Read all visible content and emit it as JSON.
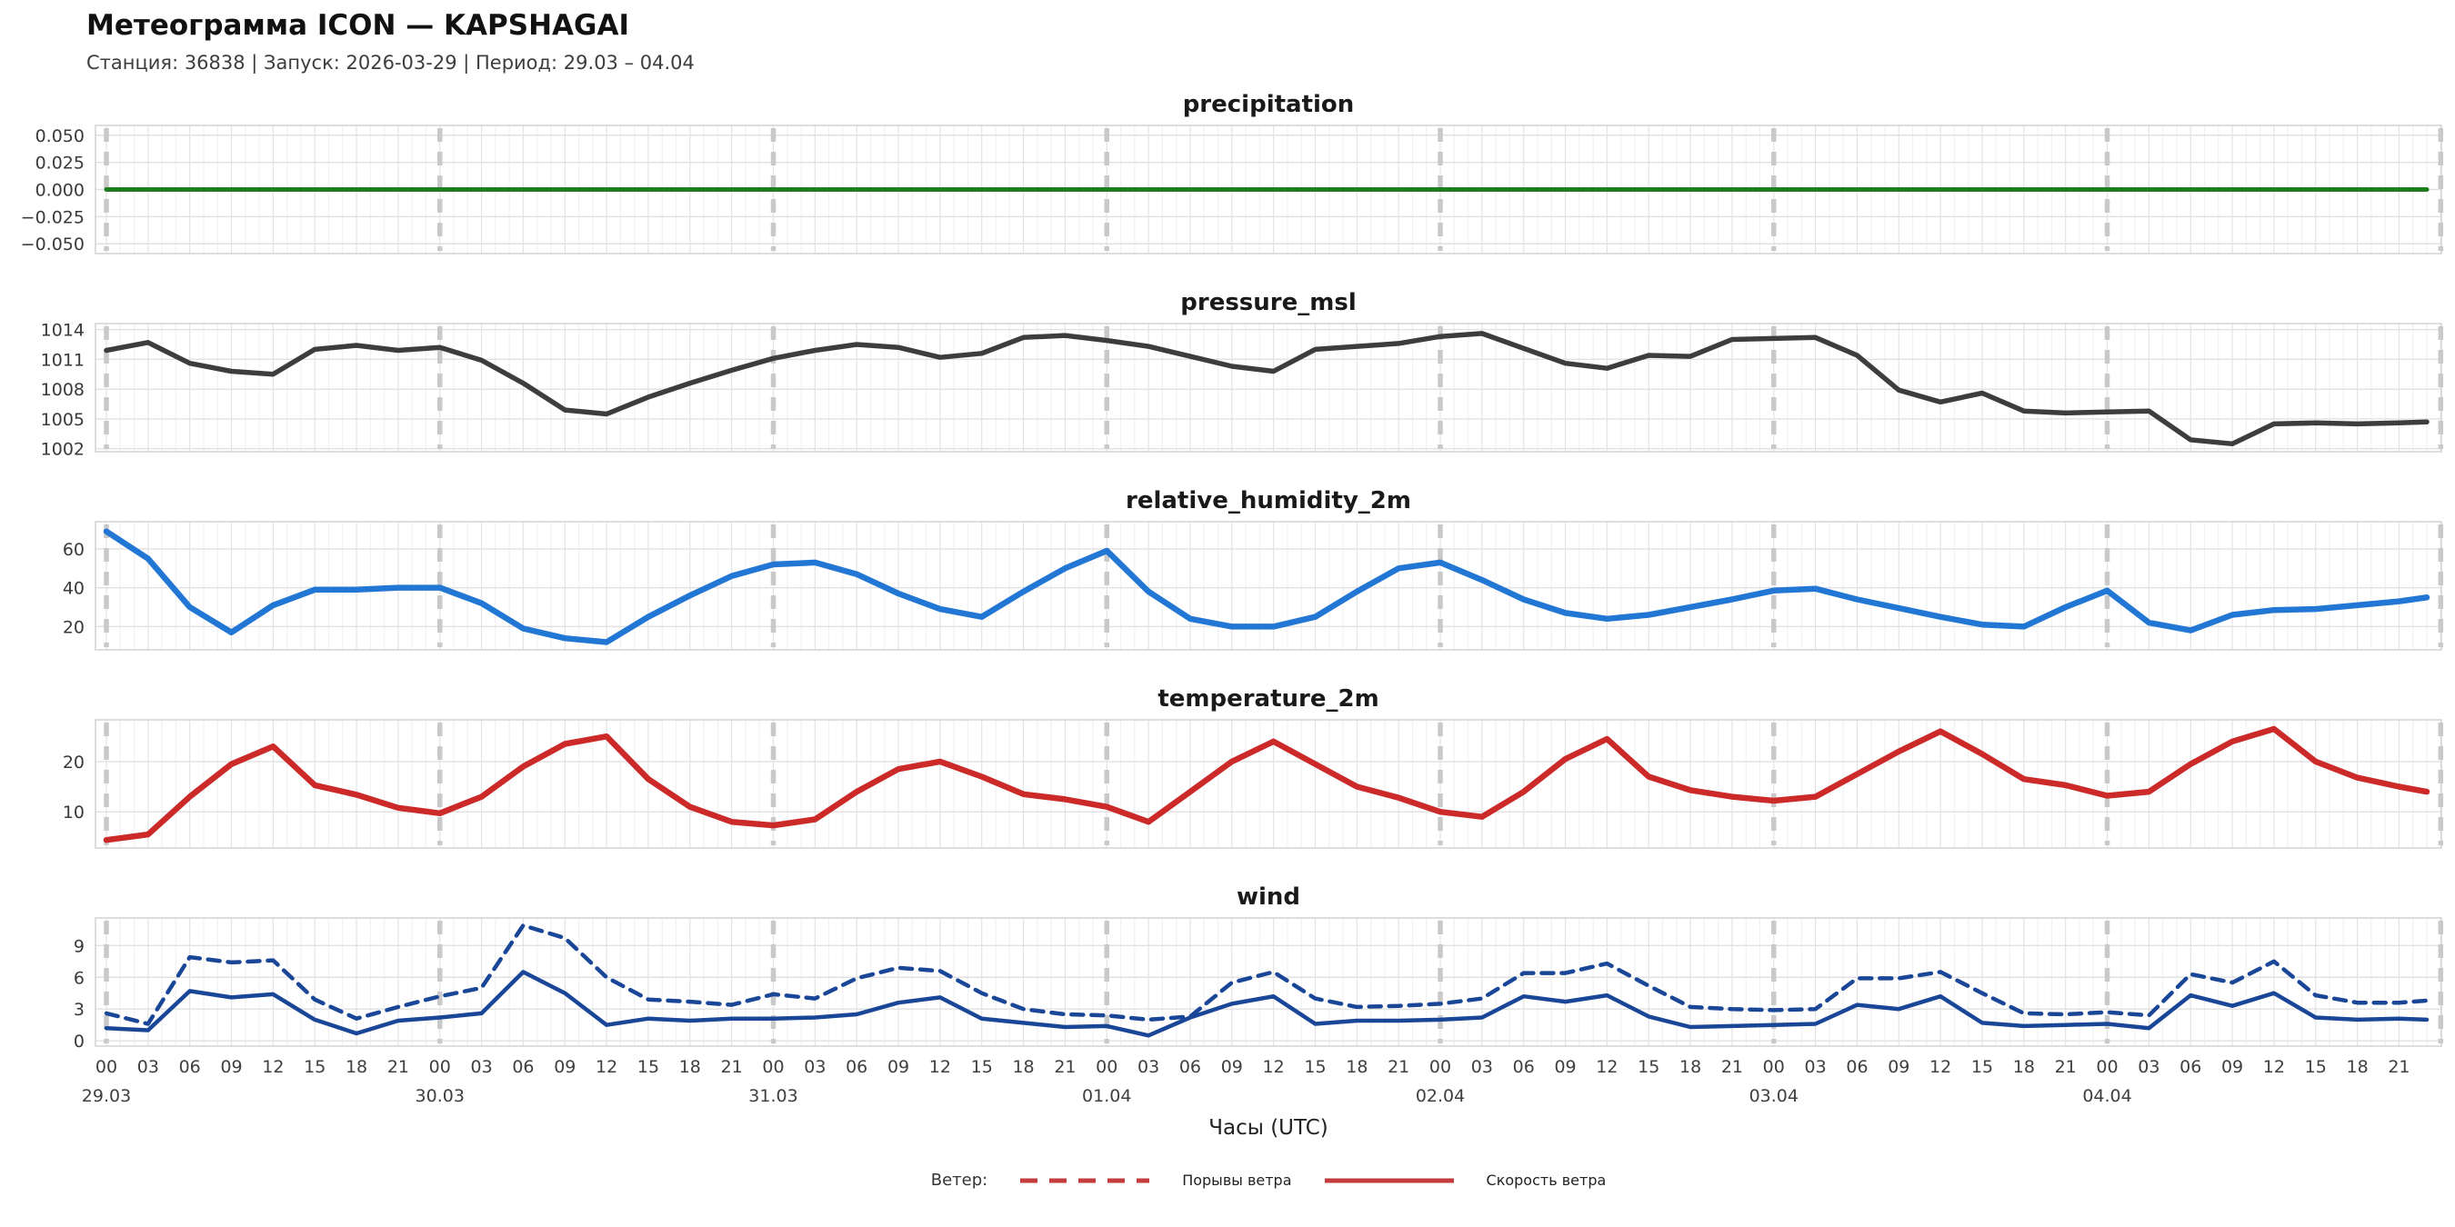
{
  "header": {
    "title": "Метеограмма ICON — KAPSHAGAI",
    "subtitle": "Станция: 36838  | Запуск: 2026-03-29  | Период: 29.03 – 04.04"
  },
  "x_axis": {
    "hour_labels": [
      "00",
      "03",
      "06",
      "09",
      "12",
      "15",
      "18",
      "21"
    ],
    "day_labels": [
      "29.03",
      "30.03",
      "31.03",
      "01.04",
      "02.04",
      "03.04",
      "04.04"
    ],
    "label": "Часы (UTC)",
    "tick_color": "#3f3f3f"
  },
  "legend": {
    "label": "Ветер:",
    "gusts_label": "Порывы ветра",
    "speed_label": "Скорость ветра",
    "color": "#c33d3d"
  },
  "style": {
    "grid_minor": "#f1f1f1",
    "grid_major": "#e3e3e3",
    "grid_horizontal": "#e1e1e1",
    "border": "#d5d5d5",
    "day_line": "#c9c9c9",
    "tick_label_color": "#3a3a3a"
  },
  "chart_data": {
    "type": "line",
    "x_hours": [
      0,
      3,
      6,
      9,
      12,
      15,
      18,
      21,
      24,
      27,
      30,
      33,
      36,
      39,
      42,
      45,
      48,
      51,
      54,
      57,
      60,
      63,
      66,
      69,
      72,
      75,
      78,
      81,
      84,
      87,
      90,
      93,
      96,
      99,
      102,
      105,
      108,
      111,
      114,
      117,
      120,
      123,
      126,
      129,
      132,
      135,
      138,
      141,
      144,
      147,
      150,
      153,
      156,
      159,
      162,
      165,
      167
    ],
    "panels": [
      {
        "title": "precipitation",
        "ylim": [
          -0.059,
          0.059
        ],
        "yticks": [
          {
            "v": 0.05,
            "label": "0.050"
          },
          {
            "v": 0.025,
            "label": "0.025"
          },
          {
            "v": 0.0,
            "label": "0.000"
          },
          {
            "v": -0.025,
            "label": "−0.025"
          },
          {
            "v": -0.05,
            "label": "−0.050"
          }
        ],
        "series": [
          {
            "name": "precipitation",
            "color": "#1f7d1f",
            "width": 5,
            "style": "solid",
            "values": [
              0,
              0,
              0,
              0,
              0,
              0,
              0,
              0,
              0,
              0,
              0,
              0,
              0,
              0,
              0,
              0,
              0,
              0,
              0,
              0,
              0,
              0,
              0,
              0,
              0,
              0,
              0,
              0,
              0,
              0,
              0,
              0,
              0,
              0,
              0,
              0,
              0,
              0,
              0,
              0,
              0,
              0,
              0,
              0,
              0,
              0,
              0,
              0,
              0,
              0,
              0,
              0,
              0,
              0,
              0,
              0,
              0
            ]
          }
        ]
      },
      {
        "title": "pressure_msl",
        "ylim": [
          1001.7,
          1014.6
        ],
        "yticks": [
          {
            "v": 1014,
            "label": "1014"
          },
          {
            "v": 1011,
            "label": "1011"
          },
          {
            "v": 1008,
            "label": "1008"
          },
          {
            "v": 1005,
            "label": "1005"
          },
          {
            "v": 1002,
            "label": "1002"
          }
        ],
        "series": [
          {
            "name": "pressure_msl",
            "color": "#3d3d3d",
            "width": 5.5,
            "style": "solid",
            "values": [
              1011.9,
              1012.7,
              1010.6,
              1009.8,
              1009.5,
              1012.0,
              1012.4,
              1011.9,
              1012.2,
              1010.9,
              1008.6,
              1005.9,
              1005.5,
              1007.2,
              1008.6,
              1009.9,
              1011.1,
              1011.9,
              1012.5,
              1012.2,
              1011.2,
              1011.6,
              1013.2,
              1013.4,
              1012.9,
              1012.3,
              1011.3,
              1010.3,
              1009.8,
              1012.0,
              1012.3,
              1012.6,
              1013.3,
              1013.6,
              1012.1,
              1010.6,
              1010.1,
              1011.4,
              1011.3,
              1013.0,
              1013.1,
              1013.2,
              1011.4,
              1007.9,
              1006.7,
              1007.6,
              1005.8,
              1005.6,
              1005.7,
              1005.8,
              1002.9,
              1002.5,
              1004.5,
              1004.6,
              1004.5,
              1004.6,
              1004.7
            ]
          }
        ]
      },
      {
        "title": "relative_humidity_2m",
        "ylim": [
          8,
          74
        ],
        "yticks": [
          {
            "v": 60,
            "label": "60"
          },
          {
            "v": 40,
            "label": "40"
          },
          {
            "v": 20,
            "label": "20"
          }
        ],
        "series": [
          {
            "name": "relative_humidity_2m",
            "color": "#2277d4",
            "width": 6.5,
            "style": "solid",
            "values": [
              69,
              55,
              30,
              17,
              31,
              39,
              39,
              40,
              40,
              32,
              19,
              14,
              12,
              25,
              36,
              46,
              52,
              53,
              47,
              37,
              29,
              25,
              38,
              50,
              59,
              38,
              24,
              20,
              20,
              25,
              38,
              50,
              53,
              44,
              34,
              27,
              24,
              26,
              30,
              34,
              38.5,
              39.5,
              34,
              29.5,
              25,
              21,
              20,
              30,
              38.5,
              22,
              18,
              26,
              28.5,
              29,
              31,
              33,
              35
            ]
          }
        ]
      },
      {
        "title": "temperature_2m",
        "ylim": [
          2.8,
          28.3
        ],
        "yticks": [
          {
            "v": 20,
            "label": "20"
          },
          {
            "v": 10,
            "label": "10"
          }
        ],
        "series": [
          {
            "name": "temperature_2m",
            "color": "#cc2929",
            "width": 6.5,
            "style": "solid",
            "values": [
              4.4,
              5.5,
              13,
              19.5,
              23,
              15.3,
              13.4,
              10.8,
              9.7,
              13,
              19,
              23.5,
              25,
              16.5,
              11,
              8,
              7.3,
              8.5,
              14,
              18.5,
              20,
              17,
              13.5,
              12.5,
              11,
              8,
              14,
              20,
              24,
              19.5,
              15,
              12.8,
              10,
              9,
              14,
              20.5,
              24.5,
              17,
              14.3,
              13,
              12.2,
              13,
              17.5,
              22,
              26,
              21.5,
              16.5,
              15.3,
              13.2,
              14,
              19.5,
              24,
              26.5,
              20,
              16.8,
              15,
              14
            ]
          }
        ]
      },
      {
        "title": "wind",
        "ylim": [
          -0.5,
          11.6
        ],
        "yticks": [
          {
            "v": 9,
            "label": "9"
          },
          {
            "v": 6,
            "label": "6"
          },
          {
            "v": 3,
            "label": "3"
          },
          {
            "v": 0,
            "label": "0"
          }
        ],
        "series": [
          {
            "name": "Порывы ветра",
            "color": "#1a4697",
            "width": 4.5,
            "style": "dashed",
            "values": [
              2.6,
              1.6,
              7.9,
              7.4,
              7.6,
              3.9,
              2.1,
              3.2,
              4.2,
              5.0,
              10.9,
              9.7,
              6.0,
              3.9,
              3.7,
              3.4,
              4.4,
              4.0,
              5.9,
              6.9,
              6.6,
              4.5,
              3.0,
              2.5,
              2.4,
              2.0,
              2.3,
              5.5,
              6.5,
              4.0,
              3.2,
              3.3,
              3.5,
              4.0,
              6.4,
              6.4,
              7.3,
              5.2,
              3.2,
              3.0,
              2.9,
              3.0,
              5.9,
              5.9,
              6.5,
              4.5,
              2.6,
              2.5,
              2.7,
              2.4,
              6.3,
              5.5,
              7.5,
              4.3,
              3.6,
              3.6,
              3.8
            ]
          },
          {
            "name": "Скорость ветра",
            "color": "#1a4697",
            "width": 4.5,
            "style": "solid",
            "values": [
              1.2,
              1.0,
              4.7,
              4.1,
              4.4,
              2.0,
              0.7,
              1.9,
              2.2,
              2.6,
              6.5,
              4.5,
              1.5,
              2.1,
              1.9,
              2.1,
              2.1,
              2.2,
              2.5,
              3.6,
              4.1,
              2.1,
              1.7,
              1.3,
              1.4,
              0.5,
              2.2,
              3.5,
              4.2,
              1.6,
              1.9,
              1.9,
              2.0,
              2.2,
              4.2,
              3.7,
              4.3,
              2.3,
              1.3,
              1.4,
              1.5,
              1.6,
              3.4,
              3.0,
              4.2,
              1.7,
              1.4,
              1.5,
              1.6,
              1.2,
              4.3,
              3.3,
              4.5,
              2.2,
              2.0,
              2.1,
              2.0
            ]
          }
        ]
      }
    ]
  }
}
